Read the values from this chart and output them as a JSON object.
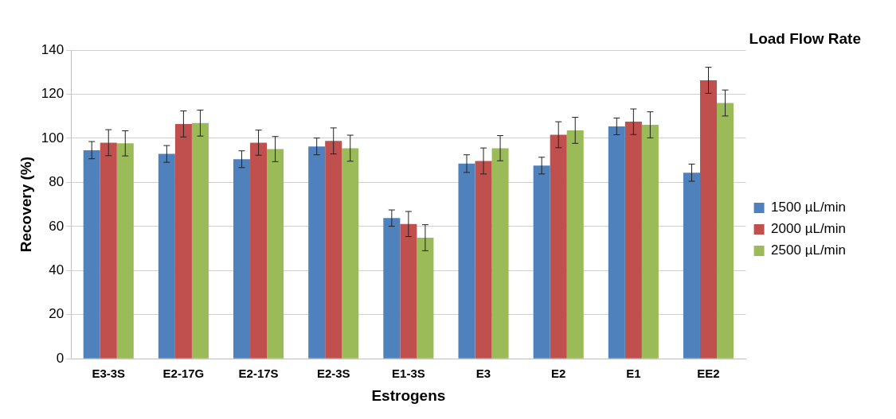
{
  "chart_data": {
    "type": "bar",
    "xlabel": "Estrogens",
    "ylabel": "Recovery (%)",
    "legend_title": "Load Flow Rate",
    "legend": "right",
    "grid": "y",
    "categories": [
      "E3-3S",
      "E2-17G",
      "E2-17S",
      "E2-3S",
      "E1-3S",
      "E3",
      "E2",
      "E1",
      "EE2"
    ],
    "ylim": [
      0,
      140
    ],
    "yticks": [
      0,
      20,
      40,
      60,
      80,
      100,
      120,
      140
    ],
    "series": [
      {
        "name": "1500 µL/min",
        "color": "#4f81bd",
        "values": [
          94.6,
          92.9,
          90.5,
          96.3,
          63.8,
          88.5,
          87.6,
          105.4,
          84.4
        ],
        "errors": [
          3.9,
          3.8,
          3.8,
          3.8,
          3.7,
          4,
          3.8,
          3.8,
          3.9
        ]
      },
      {
        "name": "2000 µL/min",
        "color": "#c0504d",
        "values": [
          98,
          106.5,
          98,
          98.8,
          61.1,
          89.7,
          101.6,
          107.5,
          126.3
        ],
        "errors": [
          5.9,
          5.9,
          5.7,
          5.9,
          5.7,
          5.9,
          5.9,
          5.8,
          5.9
        ]
      },
      {
        "name": "2500 µL/min",
        "color": "#9bbb59",
        "values": [
          97.7,
          106.9,
          95.1,
          95.5,
          54.9,
          95.5,
          103.6,
          106.1,
          116
        ],
        "errors": [
          5.7,
          5.9,
          5.7,
          5.9,
          5.9,
          5.7,
          5.9,
          5.9,
          5.9
        ]
      }
    ]
  }
}
